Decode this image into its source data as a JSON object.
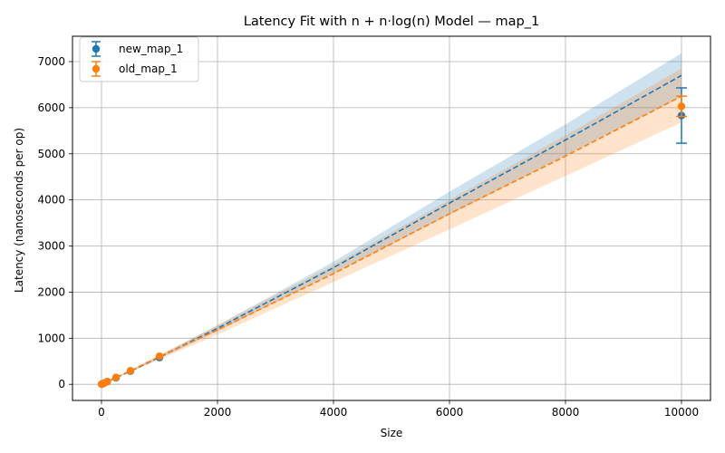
{
  "chart_data": {
    "type": "scatter",
    "title": "Latency Fit with n + n·log(n) Model — map_1",
    "xlabel": "Size",
    "ylabel": "Latency (nanoseconds per op)",
    "xlim": [
      -500,
      10500
    ],
    "ylim": [
      -350,
      7550
    ],
    "xticks": [
      0,
      2000,
      4000,
      6000,
      8000,
      10000
    ],
    "yticks": [
      0,
      1000,
      2000,
      3000,
      4000,
      5000,
      6000,
      7000
    ],
    "grid": true,
    "legend_position": "top-left",
    "series": [
      {
        "name": "new_map_1",
        "color": "#1f77b4",
        "points": [
          {
            "x": 1,
            "y": 2,
            "err": 0
          },
          {
            "x": 10,
            "y": 6,
            "err": 0
          },
          {
            "x": 20,
            "y": 12,
            "err": 0
          },
          {
            "x": 50,
            "y": 28,
            "err": 0
          },
          {
            "x": 100,
            "y": 56,
            "err": 0
          },
          {
            "x": 250,
            "y": 140,
            "err": 0
          },
          {
            "x": 500,
            "y": 285,
            "err": 0
          },
          {
            "x": 1000,
            "y": 580,
            "err": 0
          },
          {
            "x": 10000,
            "y": 5830,
            "err": 600
          }
        ],
        "fit_x": [
          1,
          10,
          20,
          50,
          100,
          250,
          500,
          1000,
          2000,
          4000,
          6000,
          8000,
          10000
        ],
        "fit_y": [
          2,
          6,
          12,
          28,
          57,
          142,
          285,
          590,
          1215,
          2530,
          3930,
          5300,
          6700
        ],
        "fit_lo": [
          1,
          5,
          11,
          26,
          53,
          134,
          270,
          560,
          1150,
          2400,
          3680,
          4960,
          6240
        ],
        "fit_hi": [
          3,
          7,
          13,
          30,
          61,
          150,
          300,
          620,
          1280,
          2660,
          4180,
          5640,
          7180
        ]
      },
      {
        "name": "old_map_1",
        "color": "#ff7f0e",
        "points": [
          {
            "x": 1,
            "y": 2,
            "err": 0
          },
          {
            "x": 10,
            "y": 7,
            "err": 0
          },
          {
            "x": 20,
            "y": 13,
            "err": 0
          },
          {
            "x": 50,
            "y": 30,
            "err": 0
          },
          {
            "x": 100,
            "y": 60,
            "err": 0
          },
          {
            "x": 250,
            "y": 150,
            "err": 0
          },
          {
            "x": 500,
            "y": 295,
            "err": 0
          },
          {
            "x": 1000,
            "y": 610,
            "err": 0
          },
          {
            "x": 10000,
            "y": 6030,
            "err": 220
          }
        ],
        "fit_x": [
          1,
          10,
          20,
          50,
          100,
          250,
          500,
          1000,
          2000,
          4000,
          6000,
          8000,
          10000
        ],
        "fit_y": [
          2,
          7,
          13,
          30,
          59,
          146,
          292,
          600,
          1180,
          2400,
          3700,
          4950,
          6250
        ],
        "fit_lo": [
          1,
          6,
          12,
          27,
          54,
          134,
          268,
          540,
          1080,
          2220,
          3360,
          4520,
          5680
        ],
        "fit_hi": [
          3,
          8,
          14,
          33,
          64,
          158,
          316,
          640,
          1280,
          2590,
          4000,
          5400,
          6850
        ]
      }
    ]
  }
}
